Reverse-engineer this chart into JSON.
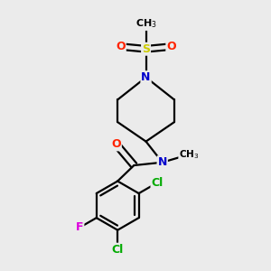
{
  "background_color": "#ebebeb",
  "atom_colors": {
    "C": "#000000",
    "N": "#0000cc",
    "O": "#ff2200",
    "S": "#cccc00",
    "Cl": "#00aa00",
    "F": "#dd00dd"
  },
  "bond_color": "#000000",
  "bond_width": 1.6,
  "figsize": [
    3.0,
    3.0
  ],
  "dpi": 100
}
